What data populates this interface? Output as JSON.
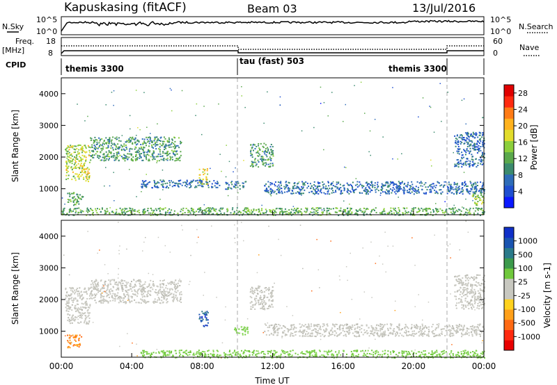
{
  "header": {
    "station": "Kapuskasing (fitACF)",
    "beam": "Beam 03",
    "date": "13/Jul/2016"
  },
  "noise_panel": {
    "left_label": "N.Sky",
    "right_label": "N.Search",
    "left_ticks": [
      "10^5",
      "10^0"
    ],
    "right_ticks": [
      "10^5",
      "10^0"
    ]
  },
  "freq_panel": {
    "left_label_1": "Freq.",
    "left_label_2": "[MHz]",
    "left_ticks": [
      "18",
      "8"
    ],
    "right_label": "Nave",
    "right_ticks": [
      "60",
      "0"
    ]
  },
  "cpid": {
    "label": "CPID",
    "segments": [
      {
        "start_hour": 0,
        "end_hour": 10,
        "name": "themis 3300"
      },
      {
        "start_hour": 10,
        "end_hour": 22,
        "name": "tau (fast) 503"
      },
      {
        "start_hour": 22,
        "end_hour": 24,
        "name": "themis 3300"
      }
    ]
  },
  "time_axis": {
    "label": "Time UT",
    "ticks": [
      "00:00",
      "04:00",
      "08:00",
      "12:00",
      "16:00",
      "20:00",
      "00:00"
    ]
  },
  "chart_data": [
    {
      "type": "heatmap",
      "title": "Power",
      "ylabel": "Slant Range [km]",
      "yticks": [
        "1000",
        "2000",
        "3000",
        "4000"
      ],
      "xlabel": "Time UT",
      "xlim_hours": [
        0,
        24
      ],
      "ylim_km": [
        180,
        4500
      ],
      "colorbar": {
        "label": "Power [dB]",
        "ticks": [
          "4",
          "8",
          "12",
          "16",
          "20",
          "24",
          "28"
        ],
        "colors": [
          "#0a18ff",
          "#1f4fd0",
          "#2e6cb8",
          "#3b8a6e",
          "#5aa84c",
          "#8ccf3c",
          "#e2dc2c",
          "#ffb21e",
          "#ff7b16",
          "#ff2a10",
          "#e00000"
        ]
      },
      "regions": [
        {
          "t0": 0.2,
          "t1": 1.6,
          "r0": 1250,
          "r1": 2400,
          "level": 16,
          "desc": "early arc"
        },
        {
          "t0": 1.6,
          "t1": 6.8,
          "r0": 1900,
          "r1": 2650,
          "level": 10
        },
        {
          "t0": 0.3,
          "t1": 1.2,
          "r0": 500,
          "r1": 900,
          "level": 12
        },
        {
          "t0": 7.8,
          "t1": 8.3,
          "r0": 1150,
          "r1": 1650,
          "level": 18
        },
        {
          "t0": 4.5,
          "t1": 9.0,
          "r0": 1050,
          "r1": 1300,
          "level": 6
        },
        {
          "t0": 9.3,
          "t1": 10.5,
          "r0": 1000,
          "r1": 1250,
          "level": 8
        },
        {
          "t0": 10.7,
          "t1": 12.0,
          "r0": 1700,
          "r1": 2450,
          "level": 10
        },
        {
          "t0": 11.5,
          "t1": 24.0,
          "r0": 850,
          "r1": 1250,
          "level": 6
        },
        {
          "t0": 0.0,
          "t1": 24.0,
          "r0": 180,
          "r1": 420,
          "level": 12
        },
        {
          "t0": 22.3,
          "t1": 24.0,
          "r0": 1700,
          "r1": 2800,
          "level": 6
        },
        {
          "t0": 23.3,
          "t1": 24.0,
          "r0": 500,
          "r1": 900,
          "level": 14
        }
      ]
    },
    {
      "type": "heatmap",
      "title": "Velocity",
      "ylabel": "Slant Range [km]",
      "yticks": [
        "1000",
        "2000",
        "3000",
        "4000"
      ],
      "xlabel": "Time UT",
      "xlim_hours": [
        0,
        24
      ],
      "ylim_km": [
        180,
        4500
      ],
      "colorbar": {
        "label": "Velocity [m s-1]",
        "ticks": [
          "1000",
          "500",
          "100",
          "25",
          "-25",
          "-100",
          "-500",
          "-1000"
        ],
        "colors": [
          "#1030c8",
          "#1a54b0",
          "#2a7a8a",
          "#3c9a4c",
          "#70c83c",
          "#c8c8c0",
          "#c8c8c0",
          "#ffd21e",
          "#ffa01a",
          "#ff6a14",
          "#ff2a10",
          "#e80000"
        ]
      },
      "regions": [
        {
          "t0": 0.2,
          "t1": 1.6,
          "r0": 1250,
          "r1": 2400,
          "value": 0,
          "desc": "grey ground scatter"
        },
        {
          "t0": 1.6,
          "t1": 6.8,
          "r0": 1900,
          "r1": 2650,
          "value": 0
        },
        {
          "t0": 0.3,
          "t1": 1.2,
          "r0": 500,
          "r1": 900,
          "value": -300
        },
        {
          "t0": 7.8,
          "t1": 8.3,
          "r0": 1150,
          "r1": 1650,
          "value": 400
        },
        {
          "t0": 9.8,
          "t1": 10.6,
          "r0": 900,
          "r1": 1200,
          "value": 150
        },
        {
          "t0": 10.7,
          "t1": 12.0,
          "r0": 1700,
          "r1": 2450,
          "value": 0
        },
        {
          "t0": 11.5,
          "t1": 24.0,
          "r0": 850,
          "r1": 1250,
          "value": 0
        },
        {
          "t0": 4.5,
          "t1": 24.0,
          "r0": 180,
          "r1": 420,
          "value": 80
        },
        {
          "t0": 22.3,
          "t1": 24.0,
          "r0": 1700,
          "r1": 2800,
          "value": 0
        }
      ]
    }
  ]
}
